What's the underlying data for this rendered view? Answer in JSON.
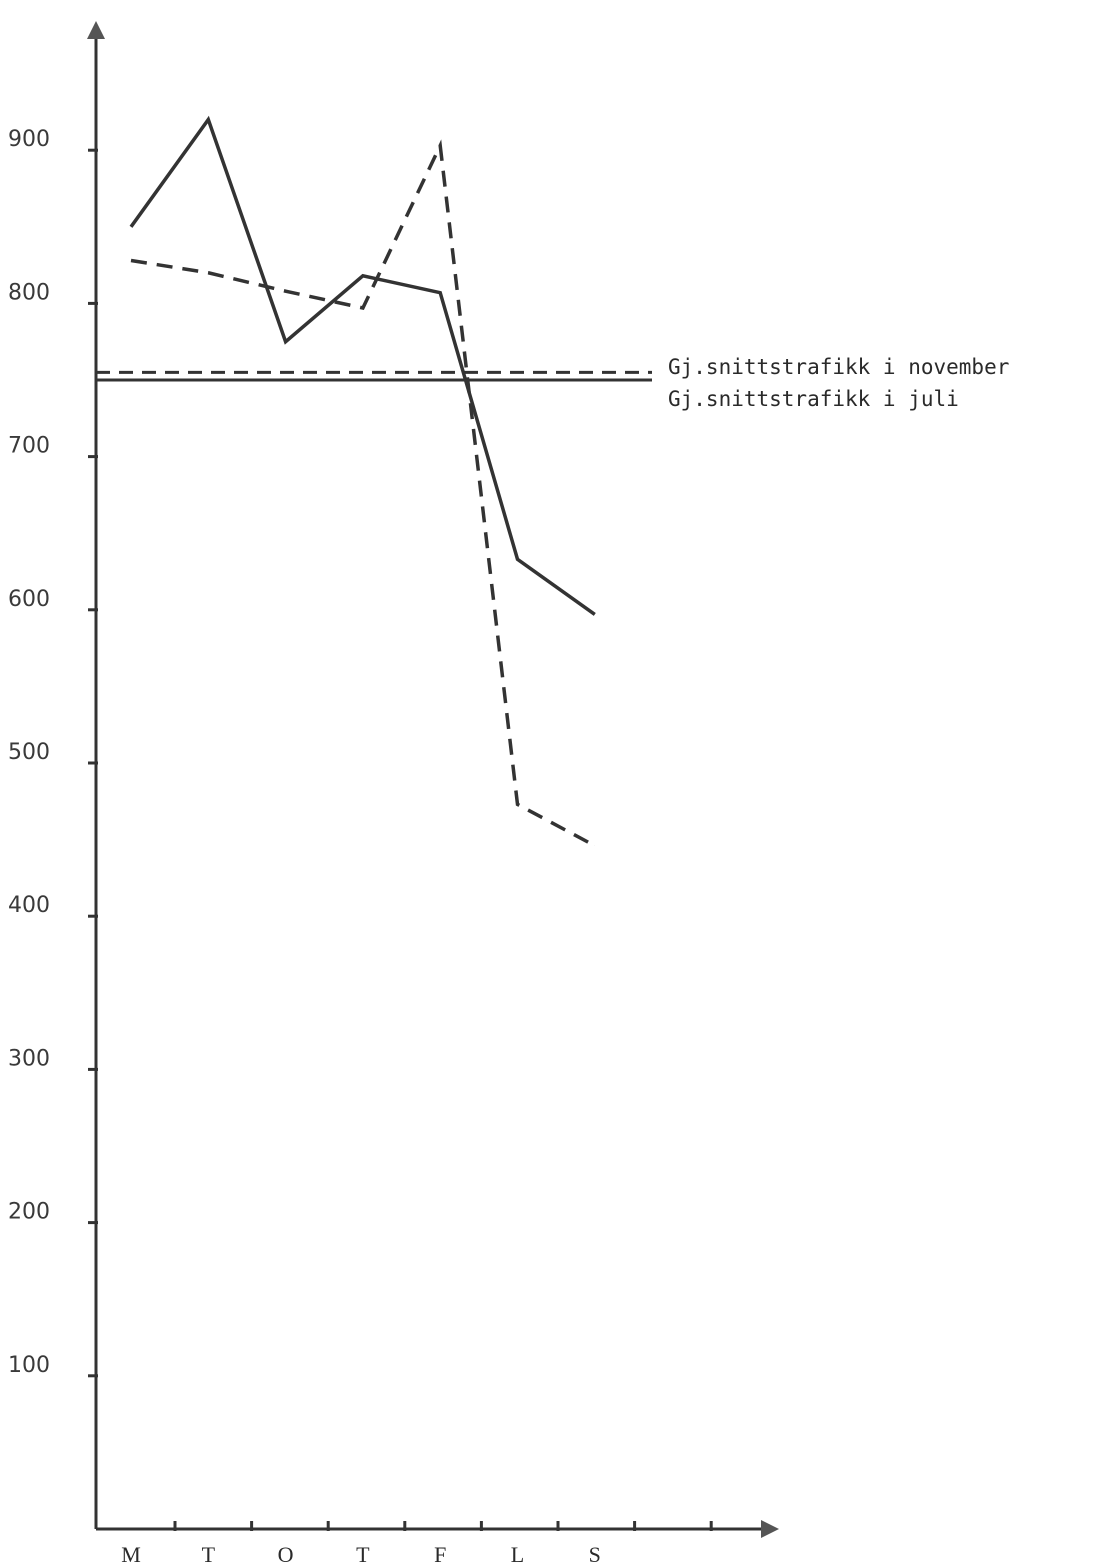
{
  "chart_data": {
    "type": "line",
    "categories": [
      "M",
      "T",
      "O",
      "T",
      "F",
      "L",
      "S"
    ],
    "ylim": [
      0,
      1000
    ],
    "yticks": [
      100,
      200,
      300,
      400,
      500,
      600,
      700,
      800,
      900
    ],
    "ytick_labels": [
      "100",
      "200",
      "300",
      "400",
      "500",
      "600",
      "700",
      "800",
      "900"
    ],
    "grid": false,
    "series": [
      {
        "style": "solid",
        "values": [
          850,
          920,
          775,
          818,
          807,
          633,
          597
        ]
      },
      {
        "style": "dashed",
        "values": [
          828,
          null,
          null,
          797,
          903,
          473,
          446
        ]
      }
    ],
    "dashed_series_full": [
      828,
      820,
      808,
      797,
      903,
      473,
      446
    ],
    "reference_lines": [
      {
        "name": "Gj.snittstrafikk i november",
        "value": 755,
        "style": "dashed"
      },
      {
        "name": "Gj.snittstrafikk i juli",
        "value": 750,
        "style": "solid"
      }
    ]
  }
}
